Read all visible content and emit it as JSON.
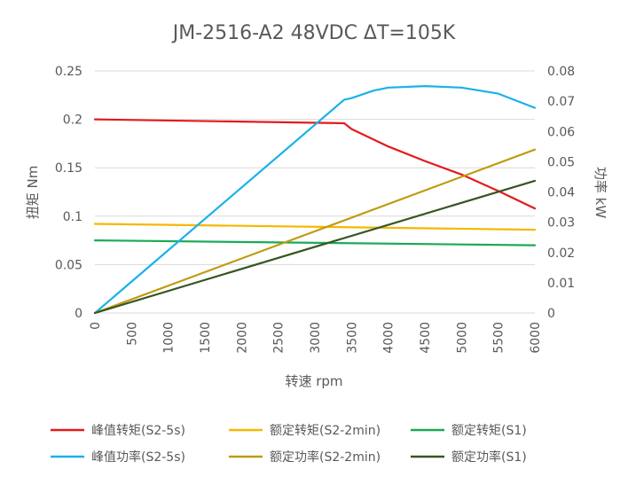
{
  "chart_data": {
    "type": "line",
    "title": "JM-2516-A2 48VDC ΔT=105K",
    "xlabel": "转速 rpm",
    "ylabel_left": "扭矩 Nm",
    "ylabel_right": "功率 kW",
    "xlim": [
      0,
      6000
    ],
    "ylim_left": [
      0,
      0.25
    ],
    "ylim_right": [
      0,
      0.08
    ],
    "x_ticks": [
      "0",
      "500",
      "1000",
      "1500",
      "2000",
      "2500",
      "3000",
      "3500",
      "4000",
      "4500",
      "5000",
      "5500",
      "6000"
    ],
    "y_left_ticks": [
      "0",
      "0.05",
      "0.1",
      "0.15",
      "0.2",
      "0.25"
    ],
    "y_right_ticks": [
      "0",
      "0.01",
      "0.02",
      "0.03",
      "0.04",
      "0.05",
      "0.06",
      "0.07",
      "0.08"
    ],
    "grid": "horizontal",
    "legend_position": "bottom",
    "series": [
      {
        "name": "峰值转矩(S2-5s)",
        "axis": "left",
        "color": "#e41a1c",
        "x": [
          0,
          3400,
          3500,
          4000,
          4500,
          5000,
          5500,
          6000
        ],
        "y": [
          0.2,
          0.196,
          0.19,
          0.172,
          0.157,
          0.143,
          0.126,
          0.108
        ]
      },
      {
        "name": "额定转矩(S2-2min)",
        "axis": "left",
        "color": "#f5b800",
        "x": [
          0,
          6000
        ],
        "y": [
          0.092,
          0.086
        ]
      },
      {
        "name": "额定转矩(S1)",
        "axis": "left",
        "color": "#1aaa55",
        "x": [
          0,
          6000
        ],
        "y": [
          0.075,
          0.07
        ]
      },
      {
        "name": "峰值功率(S2-5s)",
        "axis": "right",
        "color": "#1ab2e8",
        "x": [
          0,
          3400,
          3500,
          3800,
          4000,
          4500,
          5000,
          5500,
          6000
        ],
        "y": [
          0,
          0.0705,
          0.071,
          0.0735,
          0.0745,
          0.075,
          0.0745,
          0.0725,
          0.0678
        ]
      },
      {
        "name": "额定功率(S2-2min)",
        "axis": "right",
        "color": "#c19a12",
        "x": [
          0,
          6000
        ],
        "y": [
          0,
          0.054
        ]
      },
      {
        "name": "额定功率(S1)",
        "axis": "right",
        "color": "#375623",
        "x": [
          0,
          6000
        ],
        "y": [
          0,
          0.0437
        ]
      }
    ]
  }
}
